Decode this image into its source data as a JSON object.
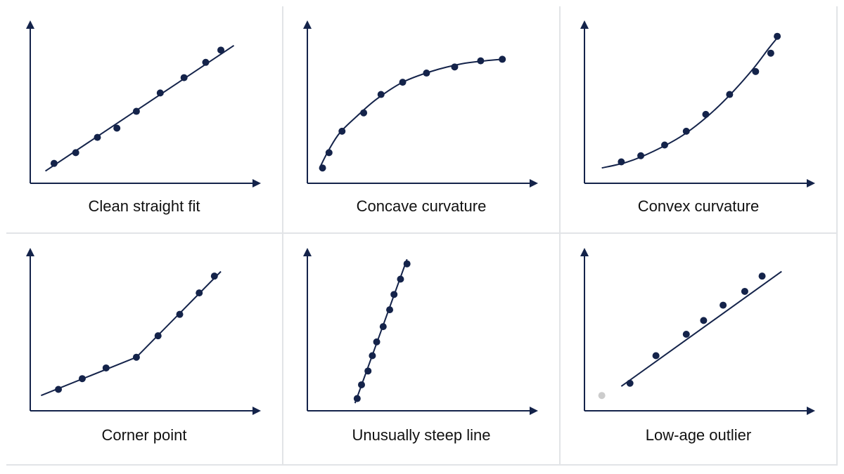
{
  "accent_color": "#14234a",
  "outlier_color": "#cccccc",
  "background_color": "#ffffff",
  "divider_color": "#e2e4e7",
  "chart_data": [
    {
      "type": "scatter",
      "title": "Clean straight fit",
      "xlabel": "",
      "ylabel": "",
      "xlim": [
        0,
        10
      ],
      "ylim": [
        0,
        10
      ],
      "points": [
        [
          1.1,
          1.3
        ],
        [
          2.1,
          2.0
        ],
        [
          3.1,
          3.0
        ],
        [
          4.0,
          3.6
        ],
        [
          4.9,
          4.7
        ],
        [
          6.0,
          5.9
        ],
        [
          7.1,
          6.9
        ],
        [
          8.1,
          7.9
        ],
        [
          8.8,
          8.7
        ]
      ],
      "fit": {
        "kind": "line",
        "points": [
          [
            0.7,
            0.8
          ],
          [
            9.4,
            9.0
          ]
        ]
      }
    },
    {
      "type": "scatter",
      "title": "Concave curvature",
      "xlabel": "",
      "ylabel": "",
      "xlim": [
        0,
        10
      ],
      "ylim": [
        0,
        10
      ],
      "points": [
        [
          0.7,
          1.0
        ],
        [
          1.0,
          2.0
        ],
        [
          1.6,
          3.4
        ],
        [
          2.6,
          4.6
        ],
        [
          3.4,
          5.8
        ],
        [
          4.4,
          6.6
        ],
        [
          5.5,
          7.2
        ],
        [
          6.8,
          7.6
        ],
        [
          8.0,
          8.0
        ],
        [
          9.0,
          8.1
        ]
      ],
      "fit": {
        "kind": "curve",
        "points": [
          [
            0.6,
            1.1
          ],
          [
            1.0,
            2.2
          ],
          [
            1.5,
            3.3
          ],
          [
            2.3,
            4.4
          ],
          [
            3.2,
            5.5
          ],
          [
            4.4,
            6.6
          ],
          [
            5.7,
            7.3
          ],
          [
            7.1,
            7.8
          ],
          [
            8.2,
            8.0
          ],
          [
            9.0,
            8.1
          ]
        ]
      }
    },
    {
      "type": "scatter",
      "title": "Convex curvature",
      "xlabel": "",
      "ylabel": "",
      "xlim": [
        0,
        10
      ],
      "ylim": [
        0,
        10
      ],
      "points": [
        [
          1.7,
          1.4
        ],
        [
          2.6,
          1.8
        ],
        [
          3.7,
          2.5
        ],
        [
          4.7,
          3.4
        ],
        [
          5.6,
          4.5
        ],
        [
          6.7,
          5.8
        ],
        [
          7.9,
          7.3
        ],
        [
          8.6,
          8.5
        ],
        [
          8.9,
          9.6
        ]
      ],
      "fit": {
        "kind": "curve",
        "points": [
          [
            0.8,
            1.0
          ],
          [
            2.0,
            1.4
          ],
          [
            3.2,
            2.1
          ],
          [
            4.5,
            3.1
          ],
          [
            5.7,
            4.4
          ],
          [
            6.8,
            5.9
          ],
          [
            7.8,
            7.5
          ],
          [
            8.5,
            8.8
          ],
          [
            8.9,
            9.5
          ]
        ]
      }
    },
    {
      "type": "scatter",
      "title": "Corner point",
      "xlabel": "",
      "ylabel": "",
      "xlim": [
        0,
        10
      ],
      "ylim": [
        0,
        10
      ],
      "points": [
        [
          1.3,
          1.4
        ],
        [
          2.4,
          2.1
        ],
        [
          3.5,
          2.8
        ],
        [
          4.9,
          3.5
        ],
        [
          5.9,
          4.9
        ],
        [
          6.9,
          6.3
        ],
        [
          7.8,
          7.7
        ],
        [
          8.5,
          8.8
        ]
      ],
      "fit": {
        "kind": "polyline",
        "points": [
          [
            0.5,
            1.0
          ],
          [
            4.9,
            3.5
          ],
          [
            8.8,
            9.1
          ]
        ]
      }
    },
    {
      "type": "scatter",
      "title": "Unusually steep line",
      "xlabel": "",
      "ylabel": "",
      "xlim": [
        0,
        10
      ],
      "ylim": [
        0,
        10
      ],
      "points": [
        [
          2.3,
          0.8
        ],
        [
          2.5,
          1.7
        ],
        [
          2.8,
          2.6
        ],
        [
          3.0,
          3.6
        ],
        [
          3.2,
          4.5
        ],
        [
          3.5,
          5.5
        ],
        [
          3.8,
          6.6
        ],
        [
          4.0,
          7.6
        ],
        [
          4.3,
          8.6
        ],
        [
          4.6,
          9.6
        ]
      ],
      "fit": {
        "kind": "line",
        "points": [
          [
            2.2,
            0.5
          ],
          [
            4.6,
            9.9
          ]
        ]
      }
    },
    {
      "type": "scatter",
      "title": "Low-age outlier",
      "xlabel": "",
      "ylabel": "",
      "xlim": [
        0,
        10
      ],
      "ylim": [
        0,
        10
      ],
      "points": [
        [
          2.1,
          1.8
        ],
        [
          3.3,
          3.6
        ],
        [
          4.7,
          5.0
        ],
        [
          5.5,
          5.9
        ],
        [
          6.4,
          6.9
        ],
        [
          7.4,
          7.8
        ],
        [
          8.2,
          8.8
        ]
      ],
      "outliers": [
        [
          0.8,
          1.0
        ]
      ],
      "fit": {
        "kind": "line",
        "points": [
          [
            1.7,
            1.6
          ],
          [
            9.1,
            9.1
          ]
        ]
      }
    }
  ]
}
